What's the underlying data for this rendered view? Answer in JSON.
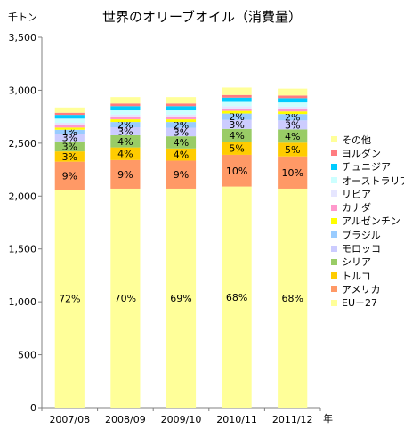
{
  "chart_data": {
    "type": "bar",
    "stacked": true,
    "title": "世界のオリーブオイル（消費量）",
    "y_unit": "千トン",
    "x_unit": "年",
    "categories": [
      "2007/08",
      "2008/09",
      "2009/10",
      "2010/11",
      "2011/12"
    ],
    "ylim": [
      0,
      3500
    ],
    "yticks": [
      0,
      500,
      1000,
      1500,
      2000,
      2500,
      3000,
      3500
    ],
    "ytick_labels": [
      "0",
      "500",
      "1,000",
      "1,500",
      "2,000",
      "2,500",
      "3,000",
      "3,500"
    ],
    "grid": false,
    "legend_position": "right",
    "series": [
      {
        "name": "EU－27",
        "color": "#FFFF99",
        "values": [
          2060,
          2070,
          2070,
          2090,
          2070
        ],
        "labels": [
          "72%",
          "70%",
          "69%",
          "68%",
          "68%"
        ]
      },
      {
        "name": "アメリカ",
        "color": "#FF9966",
        "values": [
          265,
          270,
          265,
          300,
          305
        ],
        "labels": [
          "9%",
          "9%",
          "9%",
          "10%",
          "10%"
        ]
      },
      {
        "name": "トルコ",
        "color": "#FFCC00",
        "values": [
          97,
          120,
          115,
          125,
          130
        ],
        "labels": [
          "3%",
          "4%",
          "4%",
          "5%",
          "5%"
        ]
      },
      {
        "name": "シリア",
        "color": "#99CC66",
        "values": [
          95,
          115,
          115,
          120,
          125
        ],
        "labels": [
          "3%",
          "4%",
          "4%",
          "4%",
          "4%"
        ]
      },
      {
        "name": "モロッコ",
        "color": "#CCCCFF",
        "values": [
          70,
          75,
          80,
          85,
          85
        ],
        "labels": [
          "3%",
          "3%",
          "3%",
          "3%",
          "3%"
        ]
      },
      {
        "name": "ブラジル",
        "color": "#99CCFF",
        "values": [
          40,
          50,
          55,
          60,
          60
        ],
        "labels": [
          "1%",
          "2%",
          "2%",
          "2%",
          "2%"
        ]
      },
      {
        "name": "アルゼンチン",
        "color": "#FFFF00",
        "values": [
          20,
          25,
          25,
          25,
          25
        ],
        "labels": [
          "",
          "",
          "",
          "",
          ""
        ]
      },
      {
        "name": "カナダ",
        "color": "#FF99CC",
        "values": [
          20,
          20,
          20,
          20,
          20
        ],
        "labels": [
          "",
          "",
          "",
          "",
          ""
        ]
      },
      {
        "name": "リビア",
        "color": "#E6E6FF",
        "values": [
          25,
          25,
          25,
          25,
          25
        ],
        "labels": [
          "",
          "",
          "",
          "",
          ""
        ]
      },
      {
        "name": "オーストラリア",
        "color": "#CCFFFF",
        "values": [
          40,
          40,
          40,
          40,
          40
        ],
        "labels": [
          "",
          "",
          "",
          "",
          ""
        ]
      },
      {
        "name": "チュニジア",
        "color": "#00CCFF",
        "values": [
          35,
          40,
          40,
          40,
          40
        ],
        "labels": [
          "",
          "",
          "",
          "",
          ""
        ]
      },
      {
        "name": "ヨルダン",
        "color": "#FF7C80",
        "values": [
          20,
          25,
          25,
          25,
          25
        ],
        "labels": [
          "",
          "",
          "",
          "",
          ""
        ]
      },
      {
        "name": "その他",
        "color": "#FFFF99",
        "values": [
          50,
          60,
          60,
          70,
          65
        ],
        "labels": [
          "",
          "",
          "",
          "",
          ""
        ]
      }
    ]
  }
}
